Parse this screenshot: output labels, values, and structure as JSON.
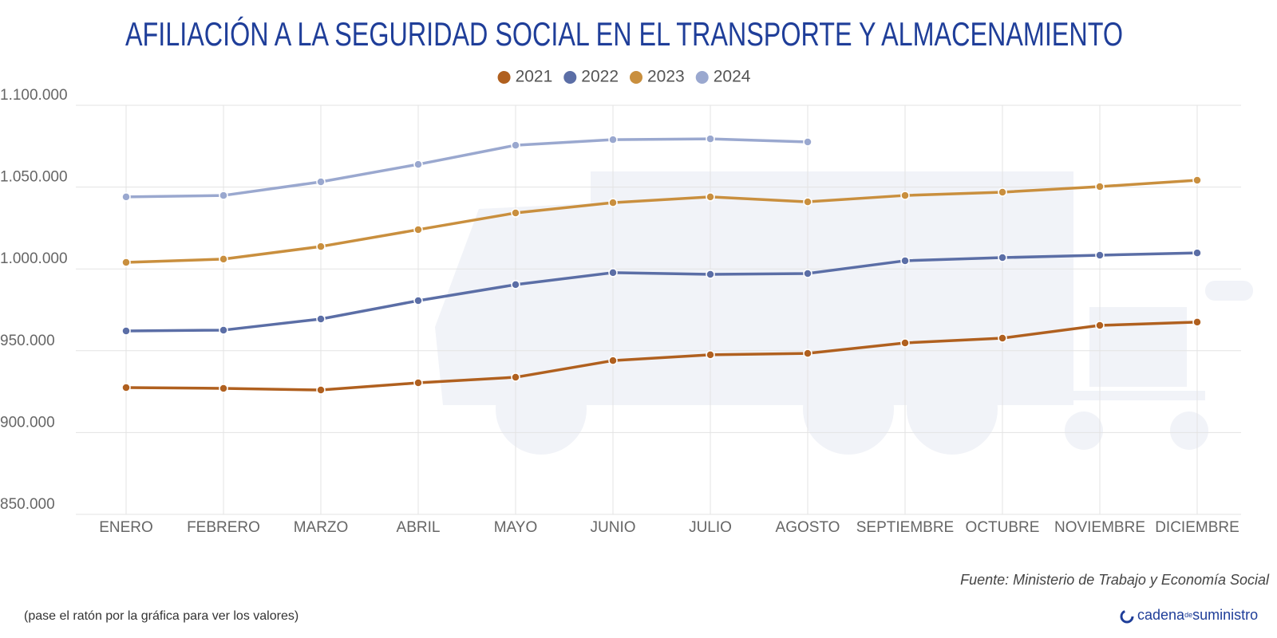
{
  "chart_data": {
    "type": "line",
    "title": "AFILIACIÓN A LA SEGURIDAD SOCIAL EN EL TRANSPORTE Y ALMACENAMIENTO",
    "categories": [
      "ENERO",
      "FEBRERO",
      "MARZO",
      "ABRIL",
      "MAYO",
      "JUNIO",
      "JULIO",
      "AGOSTO",
      "SEPTIEMBRE",
      "OCTUBRE",
      "NOVIEMBRE",
      "DICIEMBRE"
    ],
    "series": [
      {
        "name": "2021",
        "color": "#b0601f",
        "values": [
          927500,
          927000,
          926000,
          930400,
          933800,
          944000,
          947500,
          948400,
          954800,
          957700,
          965500,
          967500
        ]
      },
      {
        "name": "2022",
        "color": "#5b6ea6",
        "values": [
          962100,
          962600,
          969400,
          980600,
          990400,
          997700,
          996700,
          997200,
          1005000,
          1006900,
          1008400,
          1009800
        ]
      },
      {
        "name": "2023",
        "color": "#c98f3e",
        "values": [
          1004000,
          1006000,
          1013700,
          1024000,
          1034200,
          1040500,
          1044000,
          1041000,
          1044900,
          1046900,
          1050300,
          1054200
        ]
      },
      {
        "name": "2024",
        "color": "#9aa8cf",
        "values": [
          1044000,
          1044900,
          1053200,
          1063900,
          1075600,
          1079000,
          1079500,
          1077600,
          null,
          null,
          null,
          null
        ]
      }
    ],
    "ylim": [
      850000,
      1100000
    ],
    "yticks": [
      {
        "value": 850000,
        "label": "850.000"
      },
      {
        "value": 900000,
        "label": "900.000"
      },
      {
        "value": 950000,
        "label": "950.000"
      },
      {
        "value": 1000000,
        "label": "1.000.000"
      },
      {
        "value": 1050000,
        "label": "1.050.000"
      },
      {
        "value": 1100000,
        "label": "1.100.000"
      }
    ],
    "grid": true,
    "legend": "top",
    "source": "Fuente: Ministerio de Trabajo y Economía Social",
    "note": "(pase el ratón por la gráfica para ver los valores)",
    "logo": {
      "name": "cadena",
      "middle": "de",
      "end": "suministro"
    }
  }
}
